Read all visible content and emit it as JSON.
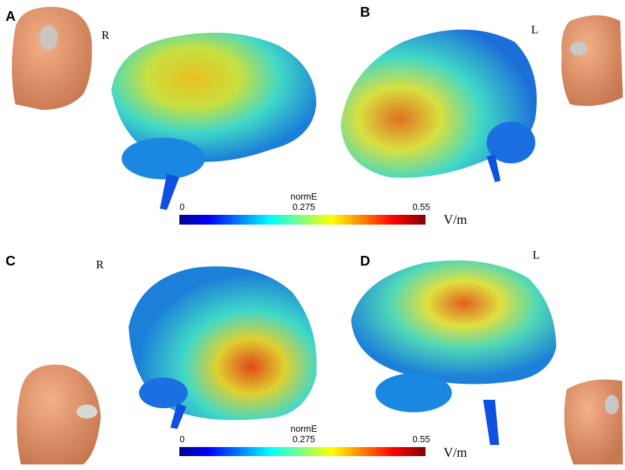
{
  "panels": [
    {
      "label": "A",
      "side": "R"
    },
    {
      "label": "B",
      "side": "L"
    },
    {
      "label": "C",
      "side": "R"
    },
    {
      "label": "D",
      "side": "L"
    }
  ],
  "colorbars": [
    {
      "title": "normE",
      "ticks": [
        "0",
        "0.275",
        "0.55"
      ],
      "unit": "V/m"
    },
    {
      "title": "normE",
      "ticks": [
        "0",
        "0.275",
        "0.55"
      ],
      "unit": "V/m"
    }
  ]
}
